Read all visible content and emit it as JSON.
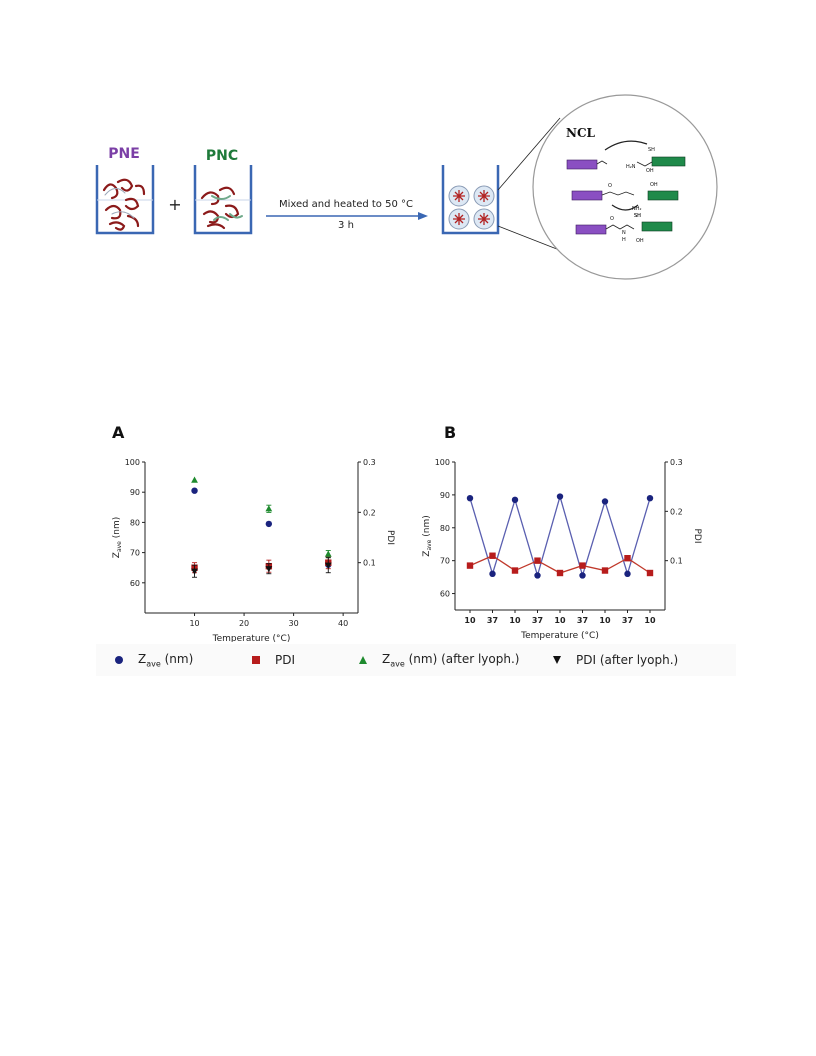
{
  "scheme": {
    "label_pne": "PNE",
    "label_pnc": "PNC",
    "plus": "+",
    "arrow_top": "Mixed and heated to 50 °C",
    "arrow_bottom": "3 h",
    "ncl_label": "NCL",
    "chem_labels": [
      "SH",
      "H₂N",
      "OH",
      "O",
      "OH",
      "NH₂",
      "SH",
      "O",
      "SH",
      "OH",
      "H",
      "N"
    ]
  },
  "colors": {
    "pne_text": "#7b3fa6",
    "pnc_text": "#1e7a3a",
    "beaker": "#3a67b3",
    "purple_block": "#8a4fc2",
    "green_block": "#1f8a4a",
    "zave": "#1a237e",
    "pdi": "#b71c1c",
    "zave_lyoph": "#1e8a2e",
    "pdi_lyoph": "#111111",
    "line_b_zave": "#5a5fb0",
    "line_b_pdi": "#c0392b"
  },
  "chart_data": [
    {
      "panel": "A",
      "type": "scatter",
      "xlabel": "Temperature (°C)",
      "ylabel": "Zave (nm)",
      "y2label": "PDI",
      "xlim": [
        0,
        43
      ],
      "xticks": [
        10,
        20,
        30,
        40
      ],
      "ylim": [
        50,
        100
      ],
      "yticks": [
        60,
        70,
        80,
        90,
        100
      ],
      "y2lim": [
        0,
        0.3
      ],
      "y2ticks": [
        0.1,
        0.2,
        0.3
      ],
      "series": [
        {
          "name": "Zave (nm)",
          "axis": "left",
          "marker": "circle",
          "x": [
            10,
            25,
            37
          ],
          "y": [
            90.5,
            79.5,
            66
          ]
        },
        {
          "name": "PDI",
          "axis": "right",
          "marker": "square",
          "x": [
            10,
            25,
            37
          ],
          "y": [
            0.09,
            0.093,
            0.1
          ],
          "err": [
            0.01,
            0.012,
            0.012
          ]
        },
        {
          "name": "Zave (nm) (after lyoph.)",
          "axis": "left",
          "marker": "triangle-up",
          "x": [
            10,
            25,
            37
          ],
          "y": [
            94,
            84.5,
            69.5
          ],
          "err": [
            0,
            1.2,
            1.2
          ]
        },
        {
          "name": "PDI (after lyoph.)",
          "axis": "right",
          "marker": "triangle-down",
          "x": [
            10,
            25,
            37
          ],
          "y": [
            0.083,
            0.088,
            0.095
          ],
          "err": [
            0.012,
            0.01,
            0.015
          ]
        }
      ]
    },
    {
      "panel": "B",
      "type": "line",
      "xlabel": "Temperature (°C)",
      "ylabel": "Zave (nm)",
      "y2label": "PDI",
      "categories": [
        "10",
        "37",
        "10",
        "37",
        "10",
        "37",
        "10",
        "37",
        "10"
      ],
      "ylim": [
        55,
        100
      ],
      "yticks": [
        60,
        70,
        80,
        90,
        100
      ],
      "y2lim": [
        0,
        0.3
      ],
      "y2ticks": [
        0.1,
        0.2,
        0.3
      ],
      "series": [
        {
          "name": "Zave (nm)",
          "axis": "left",
          "marker": "circle",
          "values": [
            89,
            66,
            88.5,
            65.5,
            89.5,
            65.5,
            88,
            66,
            89
          ]
        },
        {
          "name": "PDI",
          "axis": "right",
          "marker": "square",
          "values": [
            0.09,
            0.11,
            0.08,
            0.1,
            0.075,
            0.09,
            0.08,
            0.105,
            0.075
          ]
        }
      ]
    }
  ],
  "legend": [
    {
      "label_main": "Z",
      "label_sub": "ave",
      "label_rest": " (nm)",
      "marker": "circle",
      "color_key": "zave"
    },
    {
      "label_main": "PDI",
      "label_sub": "",
      "label_rest": "",
      "marker": "square",
      "color_key": "pdi"
    },
    {
      "label_main": "Z",
      "label_sub": "ave",
      "label_rest": " (nm) (after lyoph.)",
      "marker": "triangle-up",
      "color_key": "zave_lyoph"
    },
    {
      "label_main": "PDI (after lyoph.)",
      "label_sub": "",
      "label_rest": "",
      "marker": "triangle-down",
      "color_key": "pdi_lyoph"
    }
  ]
}
